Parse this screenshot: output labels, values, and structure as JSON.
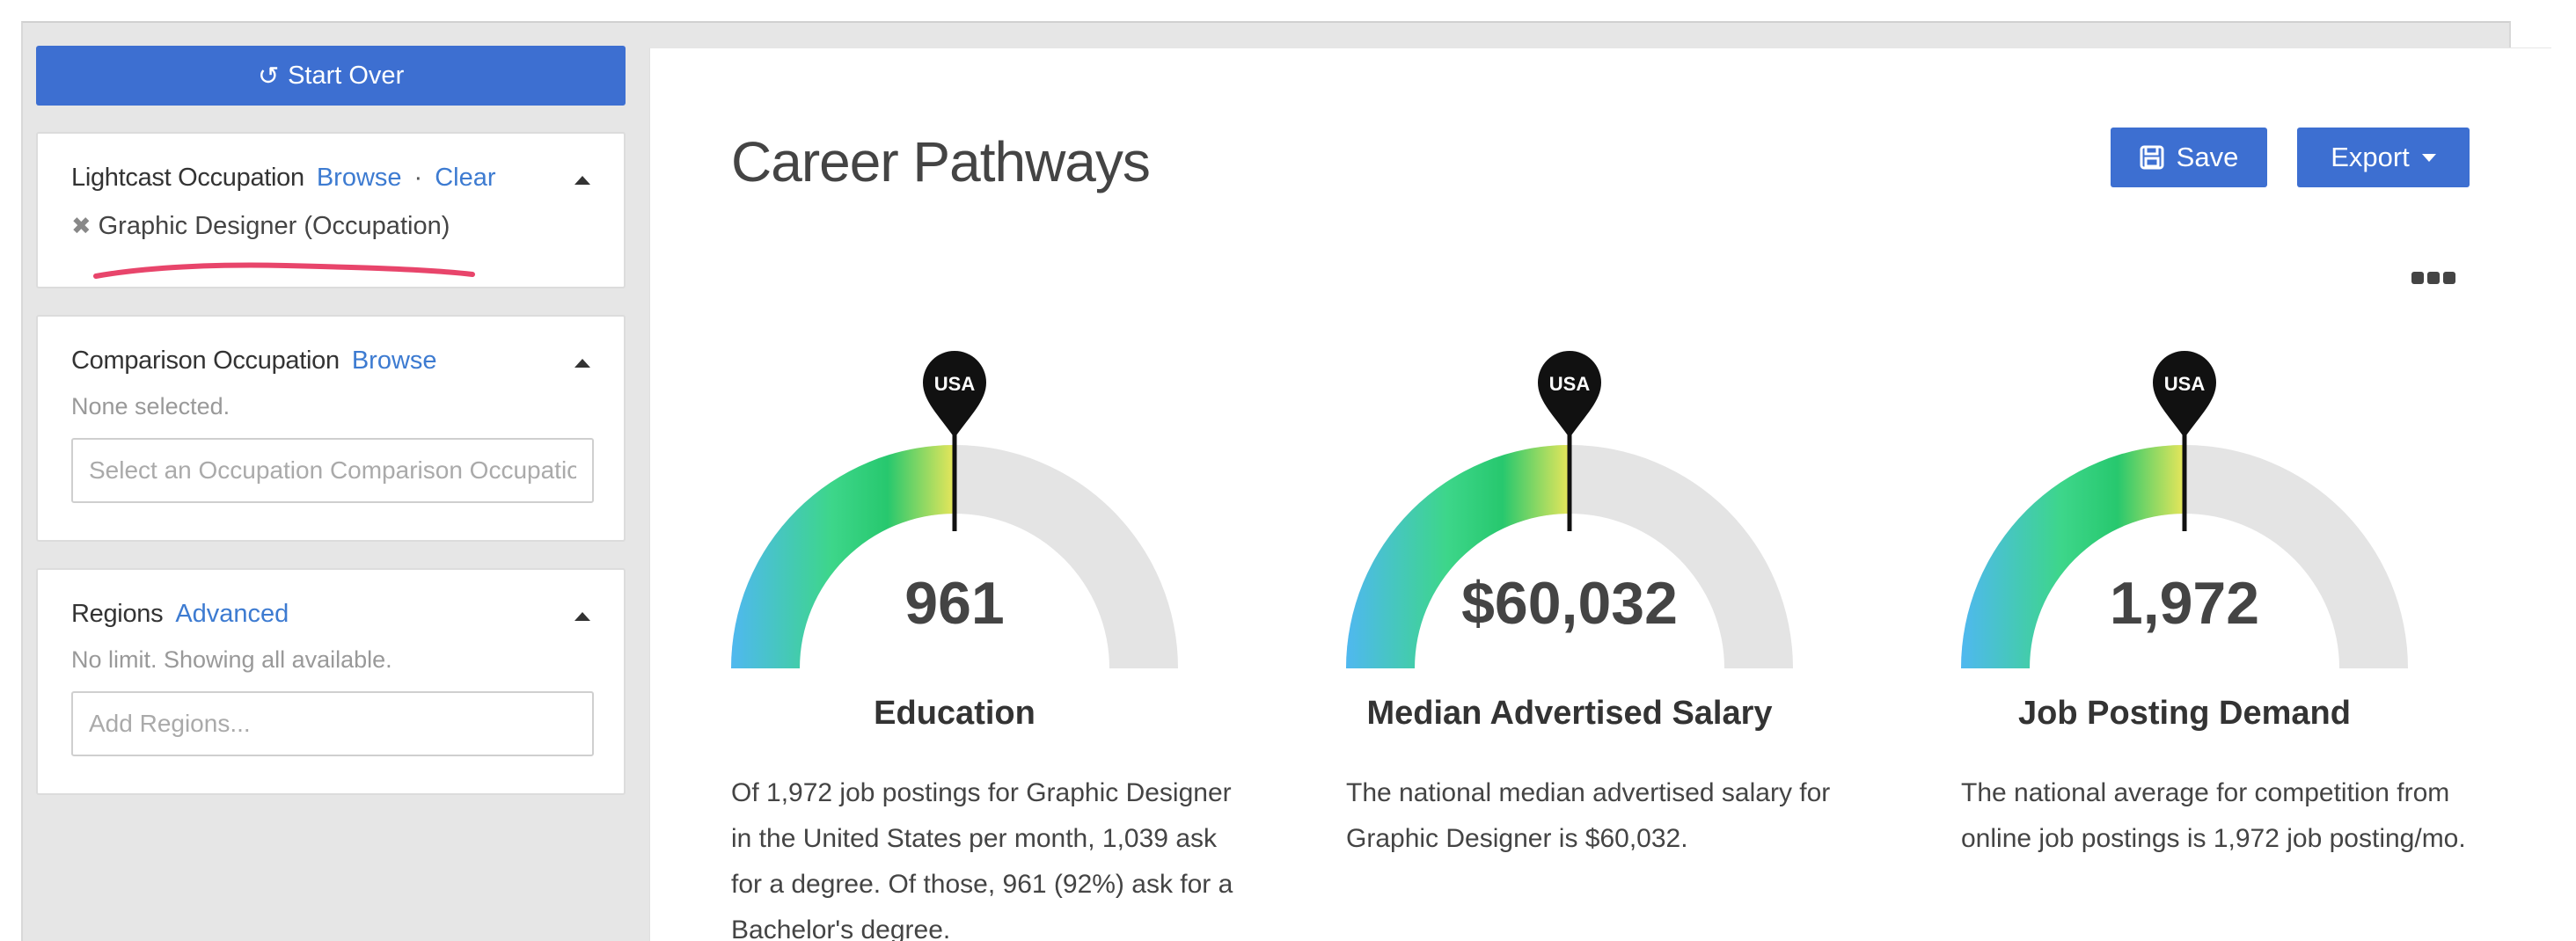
{
  "sidebar": {
    "start_over_label": "Start Over",
    "occupation_panel": {
      "title": "Lightcast Occupation",
      "browse_link": "Browse",
      "separator": "·",
      "clear_link": "Clear",
      "selected_item": "Graphic Designer (Occupation)"
    },
    "comparison_panel": {
      "title": "Comparison Occupation",
      "browse_link": "Browse",
      "status": "None selected.",
      "input_placeholder": "Select an Occupation Comparison Occupation"
    },
    "regions_panel": {
      "title": "Regions",
      "advanced_link": "Advanced",
      "status": "No limit. Showing all available.",
      "input_placeholder": "Add Regions..."
    }
  },
  "main": {
    "title": "Career Pathways",
    "save_label": "Save",
    "export_label": "Export",
    "gauges": [
      {
        "marker": "USA",
        "value": "961",
        "label": "Education",
        "description": "Of 1,972 job postings for Graphic Designer in the United States per month, 1,039 ask for a degree. Of those, 961 (92%) ask for a Bachelor's degree."
      },
      {
        "marker": "USA",
        "value": "$60,032",
        "label": "Median Advertised Salary",
        "description": "The national median advertised salary for Graphic Designer is $60,032."
      },
      {
        "marker": "USA",
        "value": "1,972",
        "label": "Job Posting Demand",
        "description": "The national average for competition from online job postings is 1,972 job posting/mo."
      }
    ]
  },
  "colors": {
    "primary_button": "#3d6fd1",
    "link": "#3d7bd1",
    "annotation_underline": "#e8456b",
    "gauge_track": "#e4e4e4",
    "gauge_gradient": [
      "#4fb8f0",
      "#3dd68a",
      "#27c86e",
      "#e8e65a"
    ]
  },
  "icons": {
    "start_over": "undo-icon",
    "save": "floppy-disk-icon",
    "export": "caret-down-icon",
    "more": "ellipsis-icon",
    "remove": "close-icon"
  }
}
